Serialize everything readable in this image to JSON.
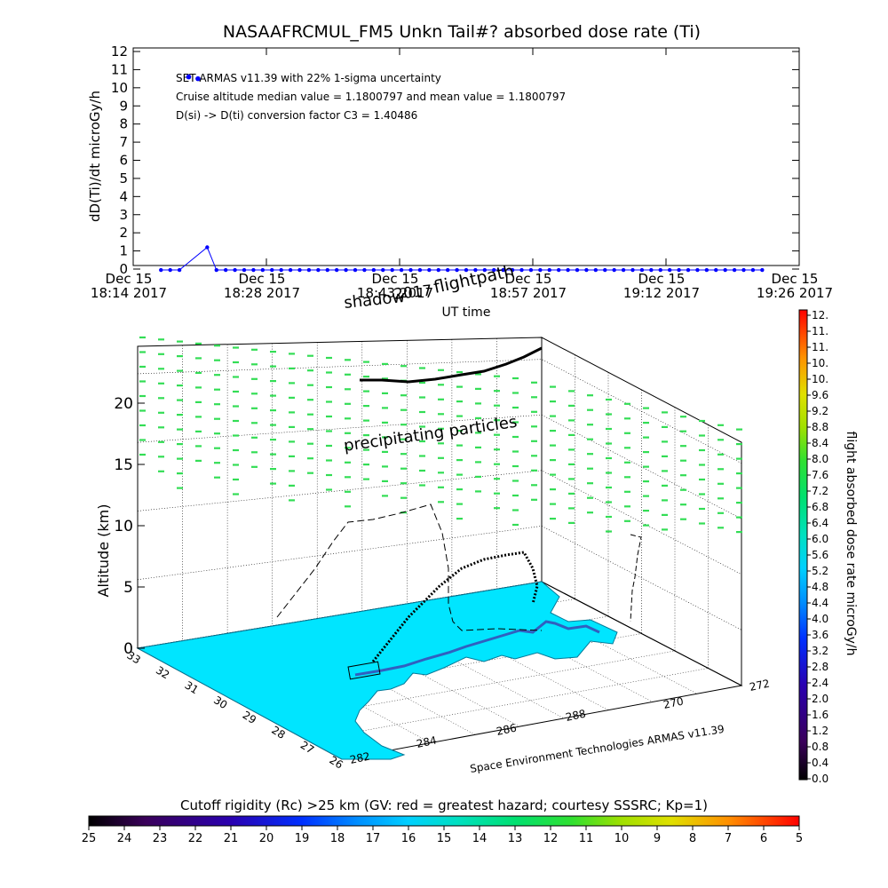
{
  "chart_data": [
    {
      "type": "scatter",
      "title": "NASAAFRCMUL_FM5 Unkn Tail#? absorbed dose rate (Ti)",
      "xlabel": "UT time",
      "ylabel": "dD(Ti)/dt microGy/h",
      "ylim": [
        0,
        12
      ],
      "yticks": [
        "0",
        "1",
        "2",
        "3",
        "4",
        "5",
        "6",
        "7",
        "8",
        "9",
        "10",
        "11",
        "12"
      ],
      "xticks": [
        {
          "top": "Dec 15",
          "bottom": "18:14 2017"
        },
        {
          "top": "Dec 15",
          "bottom": "18:28 2017"
        },
        {
          "top": "Dec 15",
          "bottom": "18:43 2017"
        },
        {
          "top": "Dec 15",
          "bottom": "18:57 2017"
        },
        {
          "top": "Dec 15",
          "bottom": "19:12 2017"
        },
        {
          "top": "Dec 15",
          "bottom": "19:26 2017"
        }
      ],
      "annotations": [
        "SET ARMAS v11.39 with 22% 1-sigma uncertainty",
        "Cruise altitude median value = 1.1800797 and mean value = 1.1800797",
        "D(si) -> D(ti) conversion factor C3 = 1.40486"
      ],
      "series": [
        {
          "color": "#0000ff",
          "x_minutes_after_1814": [
            0,
            1,
            2,
            3,
            4,
            5,
            6,
            7,
            8,
            9,
            10,
            11,
            12,
            13,
            14,
            15,
            16,
            17,
            18,
            19,
            20,
            21,
            22,
            23,
            24,
            25,
            26,
            27,
            28,
            29,
            30,
            31,
            32,
            33,
            34,
            35,
            36,
            37,
            38,
            39,
            40,
            41,
            42,
            43,
            44,
            45,
            46,
            47,
            48,
            49,
            50,
            51,
            52,
            53,
            54,
            55,
            56,
            57,
            58,
            59,
            60,
            61,
            62,
            63,
            64,
            65,
            66,
            67,
            68
          ],
          "note_points": [
            {
              "time": "18:20",
              "value": 10.6
            },
            {
              "time": "18:21",
              "value": 10.5
            },
            {
              "time": "18:22",
              "value": 1.2
            }
          ],
          "baseline_value": -0.05
        }
      ]
    },
    {
      "type": "scatter",
      "title": "",
      "zlabel": "Altitude (km)",
      "zlim": [
        0,
        22
      ],
      "zticks": [
        "0",
        "5",
        "10",
        "15",
        "20"
      ],
      "lat_ticks": [
        "33",
        "32",
        "31",
        "30",
        "29",
        "28",
        "27",
        "26"
      ],
      "lon_ticks": [
        "282",
        "284",
        "286",
        "288",
        "270",
        "272"
      ],
      "labels": {
        "flightpath": "flightpath",
        "shadow": "shadow",
        "shadow_year": "2017",
        "particles": "precipitating particles",
        "credit": "Space Environment Technologies ARMAS v11.39"
      },
      "colorbar": {
        "label": "flight absorbed dose rate microGy/h",
        "ticks": [
          "12.",
          "11.",
          "11.",
          "10.",
          "10.",
          "9.6",
          "9.2",
          "8.8",
          "8.4",
          "8.0",
          "7.6",
          "7.2",
          "6.8",
          "6.4",
          "6.0",
          "5.6",
          "5.2",
          "4.8",
          "4.4",
          "4.0",
          "3.6",
          "3.2",
          "2.8",
          "2.4",
          "2.0",
          "1.6",
          "1.2",
          "0.8",
          "0.4",
          "0.0"
        ]
      },
      "rigidity_bar": {
        "title": "Cutoff rigidity (Rc) >25 km (GV: red = greatest hazard; courtesy SSSRC; Kp=1)",
        "ticks": [
          "25",
          "24",
          "23",
          "22",
          "21",
          "20",
          "19",
          "18",
          "17",
          "16",
          "15",
          "14",
          "13",
          "12",
          "11",
          "10",
          "9",
          "8",
          "7",
          "6",
          "5"
        ]
      },
      "colors": {
        "land": "#00e5ff",
        "particles": "#33dd55",
        "flight_dots": "#000000",
        "dose_point": "#0000ff"
      }
    }
  ]
}
